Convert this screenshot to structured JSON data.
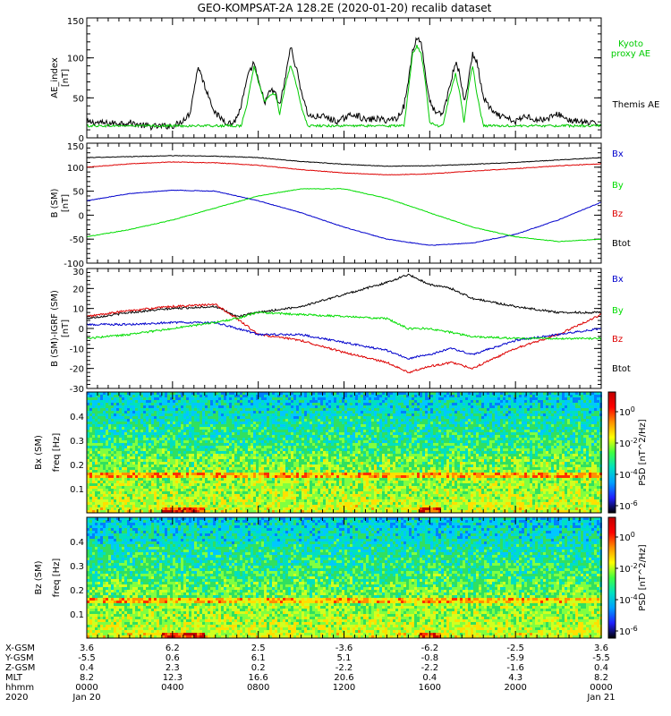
{
  "title": "GEO-KOMPSAT-2A 128.2E (2020-01-20) recalib dataset",
  "colors": {
    "bx": "#0000cc",
    "by": "#00dd00",
    "bz": "#dd0000",
    "btot": "#000000",
    "kyoto": "#00cc00"
  },
  "time_ticks": [
    "0000",
    "0400",
    "0800",
    "1200",
    "1600",
    "2000",
    "0000"
  ],
  "chart_data": [
    {
      "type": "line",
      "name": "ae-index",
      "ylabel": "AE_index",
      "yunit": "[nT]",
      "ylim": [
        0,
        150
      ],
      "yticks": [
        0,
        50,
        100,
        150
      ],
      "legend": [
        {
          "label": "Kyoto",
          "color": "#00cc00"
        },
        {
          "label": "proxy AE",
          "color": "#00cc00"
        },
        {
          "label": "Themis AE",
          "color": "#000000"
        }
      ],
      "x_hours": [
        0,
        1,
        2,
        2.5,
        3,
        4,
        4.3,
        4.8,
        5,
        5.2,
        5.5,
        5.8,
        6,
        6.5,
        6.8,
        7,
        7.2,
        7.5,
        7.8,
        8,
        8.3,
        8.6,
        8.8,
        9,
        9.3,
        9.5,
        9.7,
        10,
        10.3,
        10.6,
        10.9,
        11.2,
        11.5,
        11.8,
        12,
        12.5,
        13,
        13.5,
        14,
        14.5,
        14.8,
        15,
        15.2,
        15.4,
        15.6,
        15.8,
        16,
        16.3,
        16.6,
        16.9,
        17.2,
        17.4,
        17.6,
        17.8,
        18,
        18.2,
        18.5,
        19,
        19.5,
        20,
        20.5,
        21,
        21.5,
        22,
        22.5,
        23,
        23.5,
        24
      ],
      "series": [
        {
          "name": "Themis AE",
          "color": "#000000",
          "values": [
            20,
            18,
            19,
            16,
            14,
            15,
            18,
            30,
            60,
            90,
            65,
            45,
            30,
            20,
            18,
            25,
            40,
            75,
            95,
            70,
            45,
            60,
            55,
            40,
            80,
            115,
            95,
            60,
            30,
            25,
            28,
            25,
            22,
            20,
            25,
            30,
            22,
            24,
            22,
            25,
            40,
            70,
            110,
            125,
            120,
            80,
            45,
            30,
            30,
            60,
            95,
            80,
            45,
            70,
            105,
            95,
            50,
            30,
            25,
            20,
            28,
            22,
            24,
            30,
            22,
            20,
            18,
            17
          ]
        },
        {
          "name": "Kyoto proxy AE",
          "color": "#00cc00",
          "values": [
            15,
            15,
            15,
            15,
            15,
            15,
            15,
            15,
            15,
            15,
            15,
            15,
            15,
            15,
            15,
            15,
            15,
            45,
            90,
            70,
            45,
            55,
            55,
            30,
            70,
            90,
            75,
            40,
            15,
            15,
            15,
            15,
            15,
            15,
            15,
            15,
            15,
            15,
            15,
            15,
            15,
            60,
            105,
            115,
            105,
            70,
            20,
            15,
            15,
            50,
            80,
            55,
            20,
            60,
            90,
            55,
            15,
            15,
            15,
            15,
            15,
            15,
            15,
            15,
            15,
            15,
            15,
            15
          ]
        }
      ]
    },
    {
      "type": "line",
      "name": "b-sm",
      "ylabel": "B (SM)",
      "yunit": "[nT]",
      "ylim": [
        -100,
        150
      ],
      "yticks": [
        -100,
        -50,
        0,
        50,
        100,
        150
      ],
      "legend": [
        {
          "label": "Bx",
          "color": "#0000cc"
        },
        {
          "label": "By",
          "color": "#00dd00"
        },
        {
          "label": "Bz",
          "color": "#dd0000"
        },
        {
          "label": "Btot",
          "color": "#000000"
        }
      ],
      "x_hours": [
        0,
        2,
        4,
        6,
        8,
        10,
        12,
        14,
        16,
        18,
        20,
        22,
        24
      ],
      "series": [
        {
          "name": "Btot",
          "color": "#000000",
          "values": [
            120,
            122,
            124,
            123,
            120,
            112,
            106,
            102,
            103,
            106,
            110,
            115,
            120
          ]
        },
        {
          "name": "Bz",
          "color": "#dd0000",
          "values": [
            100,
            107,
            111,
            109,
            104,
            95,
            88,
            84,
            86,
            92,
            97,
            103,
            107
          ]
        },
        {
          "name": "Bx",
          "color": "#0000cc",
          "values": [
            30,
            45,
            52,
            50,
            30,
            5,
            -25,
            -50,
            -63,
            -58,
            -40,
            -10,
            27
          ]
        },
        {
          "name": "By",
          "color": "#00dd00",
          "values": [
            -45,
            -30,
            -10,
            15,
            40,
            55,
            55,
            35,
            5,
            -25,
            -45,
            -55,
            -50
          ]
        }
      ]
    },
    {
      "type": "line",
      "name": "b-minus-igrf",
      "ylabel": "B (SM)-IGRF (SM)",
      "yunit": "[nT]",
      "ylim": [
        -30,
        30
      ],
      "yticks": [
        -30,
        -20,
        -10,
        0,
        10,
        20,
        30
      ],
      "legend": [
        {
          "label": "Bx",
          "color": "#0000cc"
        },
        {
          "label": "By",
          "color": "#00dd00"
        },
        {
          "label": "Bz",
          "color": "#dd0000"
        },
        {
          "label": "Btot",
          "color": "#000000"
        }
      ],
      "x_hours": [
        0,
        2,
        4,
        6,
        7,
        8,
        10,
        12,
        14,
        15,
        16,
        17,
        18,
        20,
        22,
        24
      ],
      "series": [
        {
          "name": "Btot",
          "color": "#000000",
          "values": [
            5,
            8,
            10,
            11,
            6,
            8,
            11,
            17,
            23,
            27,
            22,
            20,
            15,
            11,
            8,
            8
          ]
        },
        {
          "name": "Bz",
          "color": "#dd0000",
          "values": [
            6,
            9,
            11,
            12,
            5,
            -3,
            -6,
            -12,
            -17,
            -22,
            -19,
            -17,
            -20,
            -10,
            -3,
            7
          ]
        },
        {
          "name": "Bx",
          "color": "#0000cc",
          "values": [
            2,
            2,
            3,
            3,
            0,
            -3,
            -3,
            -7,
            -11,
            -15,
            -13,
            -10,
            -13,
            -6,
            -3,
            0
          ]
        },
        {
          "name": "By",
          "color": "#00dd00",
          "values": [
            -5,
            -3,
            0,
            3,
            5,
            8,
            7,
            6,
            5,
            0,
            0,
            -2,
            -4,
            -5,
            -5,
            -5
          ]
        }
      ]
    },
    {
      "type": "heatmap",
      "name": "bx-spectrogram",
      "ylabel": "Bx (SM)",
      "yaxis": "freq [Hz]",
      "ylim": [
        0,
        0.5
      ],
      "yticks": [
        0.1,
        0.2,
        0.3,
        0.4
      ],
      "colorbar_label": "PSD [nT^2/Hz]",
      "colorbar_ticks": [
        "10^0",
        "10^-2",
        "10^-4",
        "10^-6"
      ],
      "noise_line_hz": 0.165
    },
    {
      "type": "heatmap",
      "name": "bz-spectrogram",
      "ylabel": "Bz (SM)",
      "yaxis": "freq [Hz]",
      "ylim": [
        0,
        0.5
      ],
      "yticks": [
        0.1,
        0.2,
        0.3,
        0.4
      ],
      "colorbar_label": "PSD [nT^2/Hz]",
      "colorbar_ticks": [
        "10^0",
        "10^-2",
        "10^-4",
        "10^-6"
      ],
      "noise_line_hz": 0.165
    }
  ],
  "ephemeris": {
    "rows": [
      {
        "label": "X-GSM",
        "values": [
          "3.6",
          "6.2",
          "2.5",
          "-3.6",
          "-6.2",
          "-2.5",
          "3.6"
        ]
      },
      {
        "label": "Y-GSM",
        "values": [
          "-5.5",
          "0.6",
          "6.1",
          "5.1",
          "-0.8",
          "-5.9",
          "-5.5"
        ]
      },
      {
        "label": "Z-GSM",
        "values": [
          "0.4",
          "2.3",
          "0.2",
          "-2.2",
          "-2.2",
          "-1.6",
          "0.4"
        ]
      },
      {
        "label": "MLT",
        "values": [
          "8.2",
          "12.3",
          "16.6",
          "20.6",
          "0.4",
          "4.3",
          "8.2"
        ]
      },
      {
        "label": "hhmm",
        "values": [
          "0000",
          "0400",
          "0800",
          "1200",
          "1600",
          "2000",
          "0000"
        ]
      },
      {
        "label": "2020",
        "values": [
          "Jan 20",
          "",
          "",
          "",
          "",
          "",
          "Jan 21"
        ]
      }
    ]
  }
}
